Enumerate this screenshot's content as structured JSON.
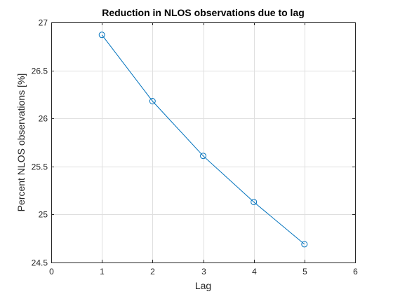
{
  "chart_data": {
    "type": "line",
    "title": "Reduction in NLOS observations due to lag",
    "xlabel": "Lag",
    "ylabel": "Percent NLOS observations [%]",
    "xlim": [
      0,
      6
    ],
    "ylim": [
      24.5,
      27
    ],
    "xticks": [
      "0",
      "1",
      "2",
      "3",
      "4",
      "5",
      "6"
    ],
    "yticks": [
      "24.5",
      "25",
      "25.5",
      "26",
      "26.5",
      "27"
    ],
    "grid": true,
    "marker": "circle",
    "colors": {
      "series": "#0072BD",
      "grid": "#dfdfdf",
      "axis": "#262626"
    },
    "series": [
      {
        "x": [
          1,
          2,
          3,
          4,
          5
        ],
        "y": [
          26.87,
          26.18,
          25.61,
          25.13,
          24.69
        ]
      }
    ]
  }
}
